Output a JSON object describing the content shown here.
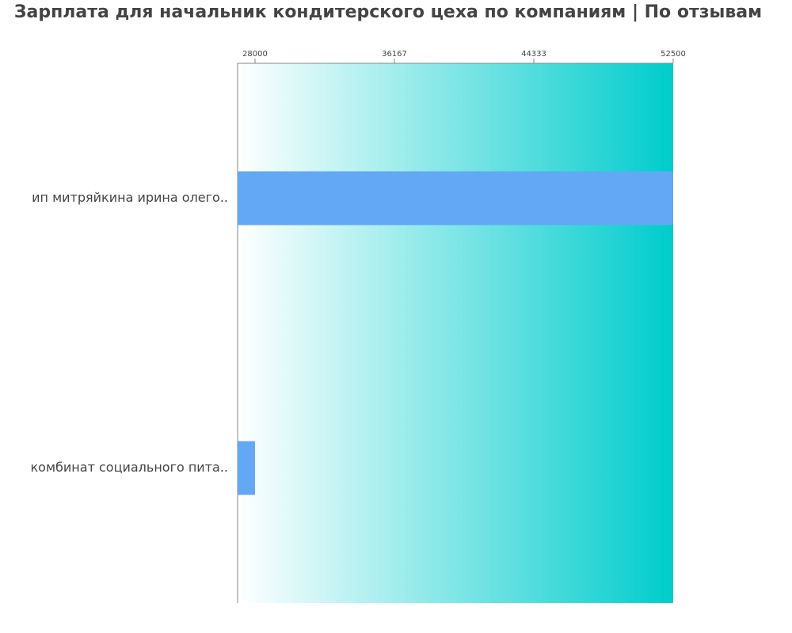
{
  "chart_data": {
    "type": "bar",
    "orientation": "horizontal",
    "title": "Зарплата для начальник кондитерского цеха по компаниям  | По отзывам",
    "categories": [
      "ип митряйкина ирина олего..",
      "комбинат социального пита.."
    ],
    "values": [
      52500,
      28000
    ],
    "color": "#63a8f5",
    "xlim": [
      26980,
      52500
    ],
    "xticks": [
      28000,
      36167,
      44333,
      52500
    ]
  }
}
